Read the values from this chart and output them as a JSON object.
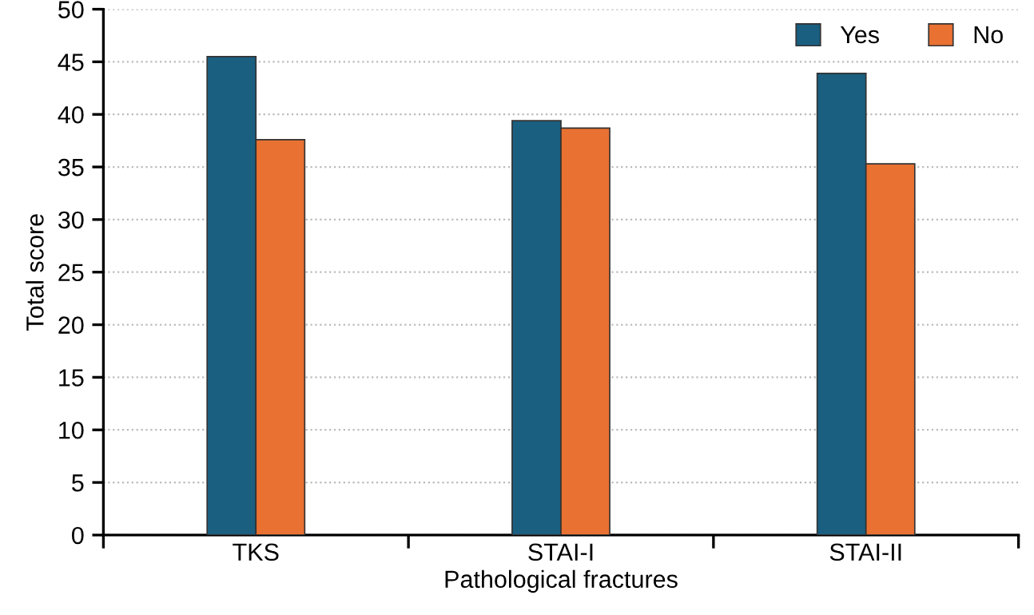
{
  "chart_data": {
    "type": "bar",
    "xlabel": "Pathological fractures",
    "ylabel": "Total score",
    "categories": [
      "TKS",
      "STAI-I",
      "STAI-II"
    ],
    "series": [
      {
        "name": "Yes",
        "color": "#1a5e80",
        "values": [
          45.5,
          39.4,
          43.9
        ]
      },
      {
        "name": "No",
        "color": "#e97132",
        "values": [
          37.6,
          38.7,
          35.3
        ]
      }
    ],
    "ylim": [
      0,
      50
    ],
    "yticks": [
      0,
      5,
      10,
      15,
      20,
      25,
      30,
      35,
      40,
      45,
      50
    ],
    "grid": "y",
    "legend": "top right"
  }
}
